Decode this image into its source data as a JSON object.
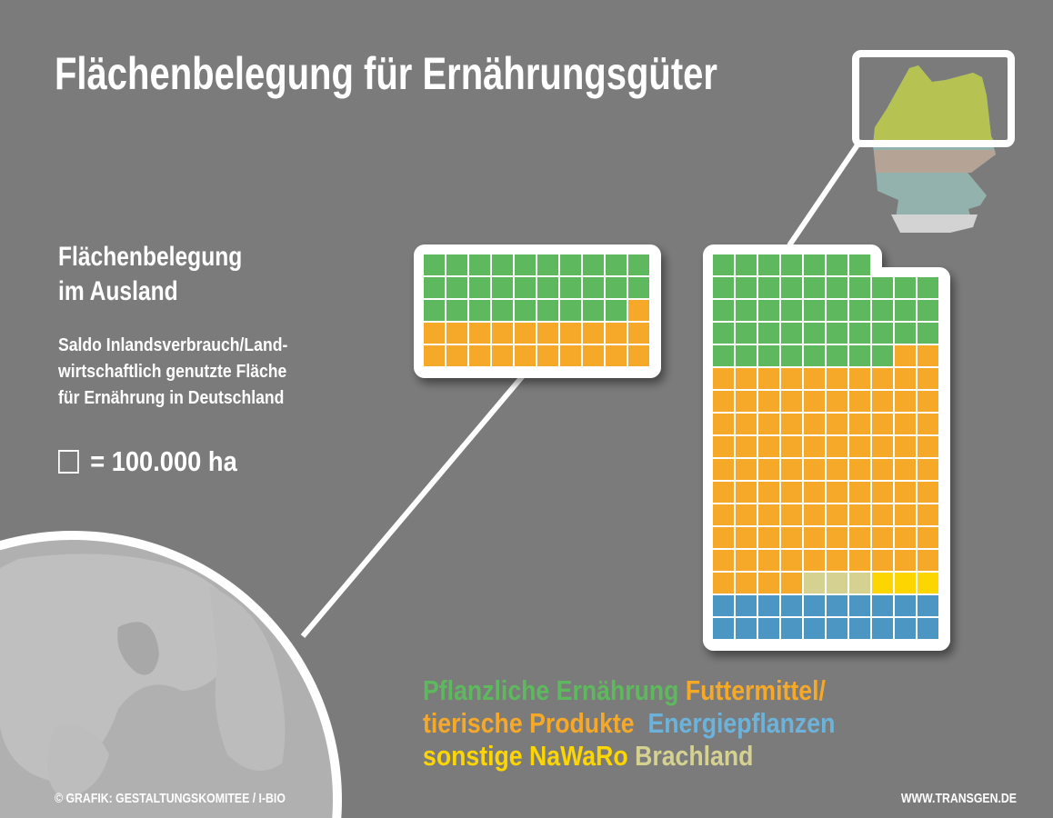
{
  "title": "Flächenbelegung für Ernährungsgüter",
  "subtitle": [
    "Flächenbelegung",
    "im Ausland"
  ],
  "description": [
    "Saldo Inlandsverbrauch/Land-",
    "wirtschaftlich genutzte Fläche",
    "für Ernährung in Deutschland"
  ],
  "unit_label": "= 100.000 ha",
  "footer": {
    "credit": "© GRAFIK: GESTALTUNGSKOMITEE / I-BIO",
    "website": "WWW.TRANSGEN.DE"
  },
  "colors": {
    "background": "#7b7b7b",
    "pflanzlich": "#5eb85e",
    "futtermittel": "#f6a929",
    "energie": "#4b96c3",
    "nawaro": "#fdd500",
    "brachland": "#d4d191",
    "legend_energie": "#6cb3dc"
  },
  "chart_data": {
    "type": "waffle",
    "unit": "1 square = 100.000 ha",
    "columns": 10,
    "legend": [
      {
        "key": "pflanzlich",
        "label": "Pflanzliche Ernährung"
      },
      {
        "key": "futtermittel",
        "label": "Futtermittel/ tierische Produkte"
      },
      {
        "key": "energie",
        "label": "Energiepflanzen"
      },
      {
        "key": "nawaro",
        "label": "sonstige NaWaRo"
      },
      {
        "key": "brachland",
        "label": "Brachland"
      }
    ],
    "charts": [
      {
        "name": "Ausland",
        "values": {
          "pflanzlich": 29,
          "futtermittel": 21
        }
      },
      {
        "name": "Deutschland",
        "values": {
          "pflanzlich": 45,
          "futtermittel": 96,
          "brachland": 3,
          "nawaro": 3,
          "energie": 20
        }
      }
    ]
  }
}
